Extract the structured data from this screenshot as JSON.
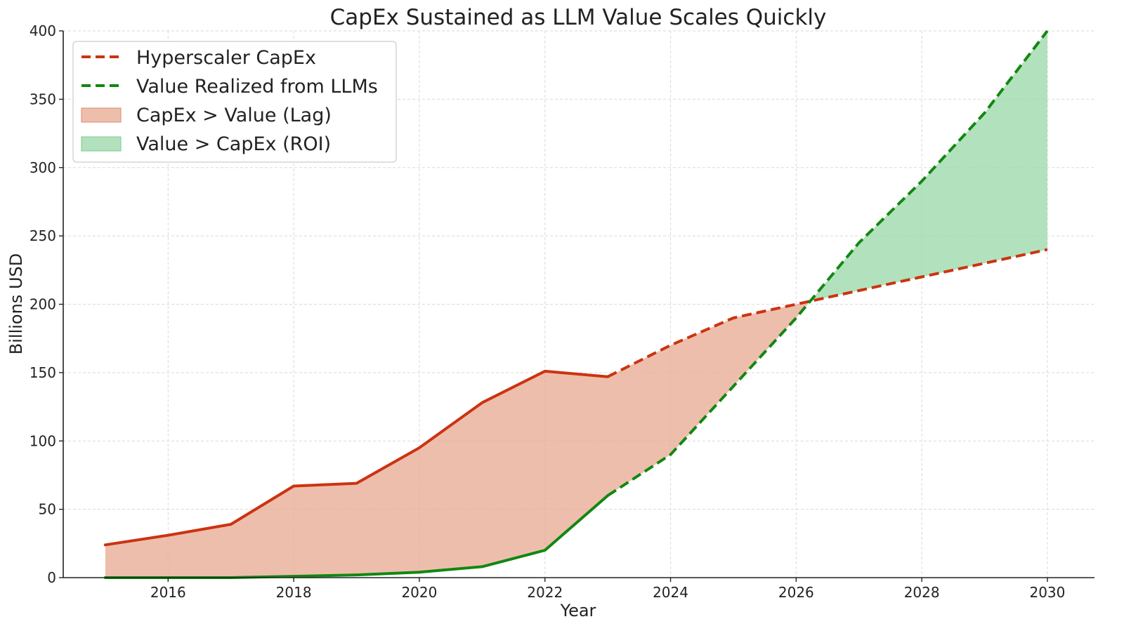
{
  "chart_data": {
    "type": "line",
    "title": "CapEx Sustained as LLM Value Scales Quickly",
    "xlabel": "Year",
    "ylabel": "Billions USD",
    "xlim": [
      2014.33,
      2030.75
    ],
    "ylim": [
      0,
      400
    ],
    "x_ticks": [
      2016,
      2018,
      2020,
      2022,
      2024,
      2026,
      2028,
      2030
    ],
    "y_ticks": [
      0,
      50,
      100,
      150,
      200,
      250,
      300,
      350,
      400
    ],
    "grid": true,
    "x": [
      2015,
      2016,
      2017,
      2018,
      2019,
      2020,
      2021,
      2022,
      2023,
      2024,
      2025,
      2026,
      2027,
      2028,
      2029,
      2030
    ],
    "series": [
      {
        "name": "Hyperscaler CapEx",
        "color": "#cc3311",
        "values": [
          24,
          31,
          39,
          67,
          69,
          95,
          128,
          151,
          147,
          170,
          190,
          200,
          210,
          220,
          230,
          240
        ],
        "solid_until": 2023
      },
      {
        "name": "Value Realized from LLMs",
        "color": "#118811",
        "values": [
          0,
          0,
          0,
          1,
          2,
          4,
          8,
          20,
          60,
          90,
          140,
          190,
          245,
          290,
          340,
          400
        ],
        "solid_until": 2023
      }
    ],
    "fills": [
      {
        "name": "CapEx > Value (Lag)",
        "color": "#e8a892",
        "opacity": 0.75
      },
      {
        "name": "Value > CapEx (ROI)",
        "color": "#9fd9ad",
        "opacity": 0.8
      }
    ],
    "legend_position": "top-left"
  }
}
